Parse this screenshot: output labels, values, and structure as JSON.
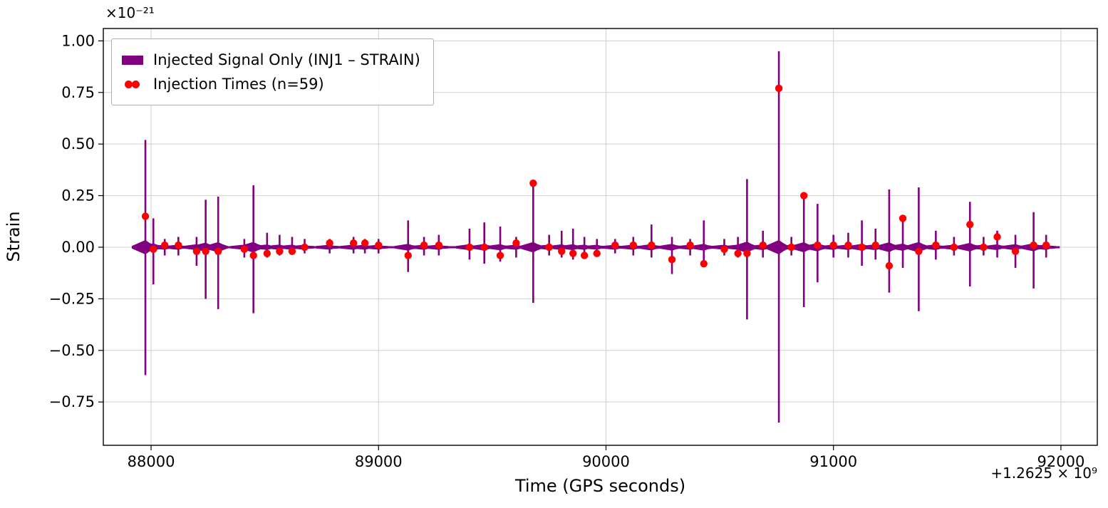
{
  "chart_data": {
    "type": "line",
    "title": "",
    "xlabel": "Time (GPS seconds)",
    "ylabel": "Strain",
    "x_offset_label": "+1.2625 × 10⁹",
    "y_scale_label": "×10⁻²¹",
    "xlim": [
      87790,
      92160
    ],
    "ylim": [
      -0.96,
      1.06
    ],
    "xticks": [
      88000,
      89000,
      90000,
      91000,
      92000
    ],
    "yticks": [
      -0.75,
      -0.5,
      -0.25,
      0,
      0.25,
      0.5,
      0.75,
      1
    ],
    "grid": true,
    "legend_position": "upper-left",
    "colors": {
      "signal": "#800080",
      "injection": "#ff0000",
      "grid": "#d0d0d0",
      "frame": "#000000"
    },
    "legend": [
      {
        "label": "Injected Signal Only (INJ1 – STRAIN)",
        "marker": "thick-line",
        "color": "#800080"
      },
      {
        "label": "Injection Times (n=59)",
        "marker": "dots",
        "color": "#ff0000"
      }
    ],
    "injection_count": 59,
    "injections": [
      {
        "t": 87975,
        "spike_up": 0.52,
        "spike_down": -0.62,
        "dot": 0.15
      },
      {
        "t": 88010,
        "spike_up": 0.14,
        "spike_down": -0.18,
        "dot": -0.01
      },
      {
        "t": 88060,
        "spike_up": 0.04,
        "spike_down": -0.04,
        "dot": 0.01
      },
      {
        "t": 88120,
        "spike_up": 0.05,
        "spike_down": -0.04,
        "dot": 0.01
      },
      {
        "t": 88200,
        "spike_up": 0.05,
        "spike_down": -0.09,
        "dot": -0.02
      },
      {
        "t": 88240,
        "spike_up": 0.23,
        "spike_down": -0.25,
        "dot": -0.02
      },
      {
        "t": 88295,
        "spike_up": 0.245,
        "spike_down": -0.3,
        "dot": -0.02
      },
      {
        "t": 88410,
        "spike_up": 0.04,
        "spike_down": -0.05,
        "dot": -0.01
      },
      {
        "t": 88450,
        "spike_up": 0.3,
        "spike_down": -0.32,
        "dot": -0.04
      },
      {
        "t": 88510,
        "spike_up": 0.07,
        "spike_down": -0.05,
        "dot": -0.03
      },
      {
        "t": 88565,
        "spike_up": 0.06,
        "spike_down": -0.04,
        "dot": -0.02
      },
      {
        "t": 88620,
        "spike_up": 0.05,
        "spike_down": -0.03,
        "dot": -0.02
      },
      {
        "t": 88675,
        "spike_up": 0.04,
        "spike_down": -0.03,
        "dot": 0.0
      },
      {
        "t": 88785,
        "spike_up": 0.04,
        "spike_down": -0.03,
        "dot": 0.02
      },
      {
        "t": 88890,
        "spike_up": 0.05,
        "spike_down": -0.03,
        "dot": 0.02
      },
      {
        "t": 88940,
        "spike_up": 0.04,
        "spike_down": -0.03,
        "dot": 0.02
      },
      {
        "t": 89000,
        "spike_up": 0.04,
        "spike_down": -0.03,
        "dot": 0.01
      },
      {
        "t": 89130,
        "spike_up": 0.13,
        "spike_down": -0.12,
        "dot": -0.04
      },
      {
        "t": 89200,
        "spike_up": 0.05,
        "spike_down": -0.04,
        "dot": 0.01
      },
      {
        "t": 89265,
        "spike_up": 0.06,
        "spike_down": -0.04,
        "dot": 0.01
      },
      {
        "t": 89400,
        "spike_up": 0.09,
        "spike_down": -0.06,
        "dot": 0.0
      },
      {
        "t": 89465,
        "spike_up": 0.12,
        "spike_down": -0.08,
        "dot": 0.0
      },
      {
        "t": 89535,
        "spike_up": 0.1,
        "spike_down": -0.07,
        "dot": -0.04
      },
      {
        "t": 89605,
        "spike_up": 0.05,
        "spike_down": -0.05,
        "dot": 0.02
      },
      {
        "t": 89680,
        "spike_up": 0.31,
        "spike_down": -0.27,
        "dot": 0.31
      },
      {
        "t": 89750,
        "spike_up": 0.06,
        "spike_down": -0.04,
        "dot": 0.0
      },
      {
        "t": 89805,
        "spike_up": 0.08,
        "spike_down": -0.05,
        "dot": -0.02
      },
      {
        "t": 89855,
        "spike_up": 0.09,
        "spike_down": -0.06,
        "dot": -0.03
      },
      {
        "t": 89905,
        "spike_up": 0.05,
        "spike_down": -0.04,
        "dot": -0.04
      },
      {
        "t": 89960,
        "spike_up": 0.04,
        "spike_down": -0.04,
        "dot": -0.03
      },
      {
        "t": 90040,
        "spike_up": 0.04,
        "spike_down": -0.03,
        "dot": 0.01
      },
      {
        "t": 90120,
        "spike_up": 0.05,
        "spike_down": -0.04,
        "dot": 0.01
      },
      {
        "t": 90200,
        "spike_up": 0.11,
        "spike_down": -0.05,
        "dot": 0.01
      },
      {
        "t": 90290,
        "spike_up": 0.05,
        "spike_down": -0.13,
        "dot": -0.06
      },
      {
        "t": 90370,
        "spike_up": 0.04,
        "spike_down": -0.04,
        "dot": 0.01
      },
      {
        "t": 90430,
        "spike_up": 0.13,
        "spike_down": -0.08,
        "dot": -0.08
      },
      {
        "t": 90520,
        "spike_up": 0.04,
        "spike_down": -0.04,
        "dot": -0.01
      },
      {
        "t": 90580,
        "spike_up": 0.05,
        "spike_down": -0.05,
        "dot": -0.03
      },
      {
        "t": 90620,
        "spike_up": 0.33,
        "spike_down": -0.35,
        "dot": -0.03
      },
      {
        "t": 90690,
        "spike_up": 0.08,
        "spike_down": -0.05,
        "dot": 0.01
      },
      {
        "t": 90760,
        "spike_up": 0.95,
        "spike_down": -0.85,
        "dot": 0.77
      },
      {
        "t": 90815,
        "spike_up": 0.05,
        "spike_down": -0.04,
        "dot": 0.0
      },
      {
        "t": 90870,
        "spike_up": 0.25,
        "spike_down": -0.29,
        "dot": 0.25
      },
      {
        "t": 90930,
        "spike_up": 0.21,
        "spike_down": -0.17,
        "dot": 0.01
      },
      {
        "t": 91000,
        "spike_up": 0.06,
        "spike_down": -0.05,
        "dot": 0.01
      },
      {
        "t": 91065,
        "spike_up": 0.07,
        "spike_down": -0.05,
        "dot": 0.01
      },
      {
        "t": 91125,
        "spike_up": 0.13,
        "spike_down": -0.09,
        "dot": 0.0
      },
      {
        "t": 91185,
        "spike_up": 0.09,
        "spike_down": -0.06,
        "dot": 0.01
      },
      {
        "t": 91245,
        "spike_up": 0.28,
        "spike_down": -0.22,
        "dot": -0.09
      },
      {
        "t": 91305,
        "spike_up": 0.15,
        "spike_down": -0.1,
        "dot": 0.14
      },
      {
        "t": 91375,
        "spike_up": 0.29,
        "spike_down": -0.31,
        "dot": -0.02
      },
      {
        "t": 91450,
        "spike_up": 0.08,
        "spike_down": -0.06,
        "dot": 0.01
      },
      {
        "t": 91530,
        "spike_up": 0.05,
        "spike_down": -0.04,
        "dot": 0.0
      },
      {
        "t": 91600,
        "spike_up": 0.22,
        "spike_down": -0.19,
        "dot": 0.11
      },
      {
        "t": 91660,
        "spike_up": 0.05,
        "spike_down": -0.04,
        "dot": 0.0
      },
      {
        "t": 91720,
        "spike_up": 0.08,
        "spike_down": -0.05,
        "dot": 0.05
      },
      {
        "t": 91800,
        "spike_up": 0.06,
        "spike_down": -0.1,
        "dot": -0.02
      },
      {
        "t": 91880,
        "spike_up": 0.17,
        "spike_down": -0.2,
        "dot": 0.01
      },
      {
        "t": 91935,
        "spike_up": 0.06,
        "spike_down": -0.05,
        "dot": 0.01
      }
    ]
  }
}
